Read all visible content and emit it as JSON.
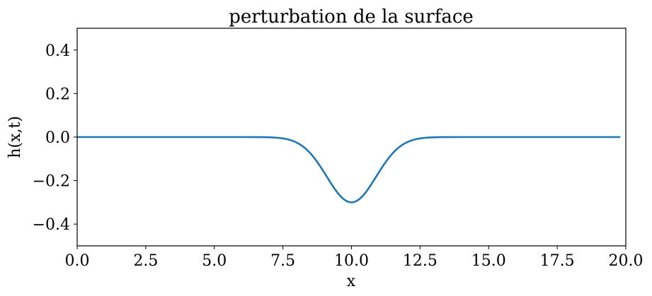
{
  "chart_data": {
    "type": "line",
    "title": "perturbation de la surface",
    "xlabel": "x",
    "ylabel": "h(x,t)",
    "xlim": [
      0,
      20
    ],
    "ylim": [
      -0.5,
      0.5
    ],
    "xticks": [
      0.0,
      2.5,
      5.0,
      7.5,
      10.0,
      12.5,
      15.0,
      17.5,
      20.0
    ],
    "xtick_labels": [
      "0.0",
      "2.5",
      "5.0",
      "7.5",
      "10.0",
      "12.5",
      "15.0",
      "17.5",
      "20.0"
    ],
    "yticks": [
      0.4,
      0.2,
      0.0,
      -0.2,
      -0.4
    ],
    "ytick_labels": [
      "0.4",
      "0.2",
      "0.0",
      "−0.2",
      "−0.4"
    ],
    "grid": false,
    "legend": null,
    "series": [
      {
        "name": "h(x,t)",
        "color": "#1f77b4",
        "shape": "gaussian dip",
        "center": 10.0,
        "amplitude": -0.3,
        "width_sigma": 0.9,
        "x": [
          0,
          2,
          4,
          6,
          7,
          7.5,
          8,
          8.5,
          9,
          9.5,
          10,
          10.5,
          11,
          11.5,
          12,
          12.5,
          13,
          14,
          16,
          18,
          19.8
        ],
        "y": [
          0,
          0,
          0,
          0,
          -0.001,
          -0.003,
          -0.024,
          -0.075,
          -0.162,
          -0.256,
          -0.3,
          -0.256,
          -0.162,
          -0.075,
          -0.024,
          -0.003,
          -0.001,
          0,
          0,
          0,
          0
        ]
      }
    ]
  }
}
